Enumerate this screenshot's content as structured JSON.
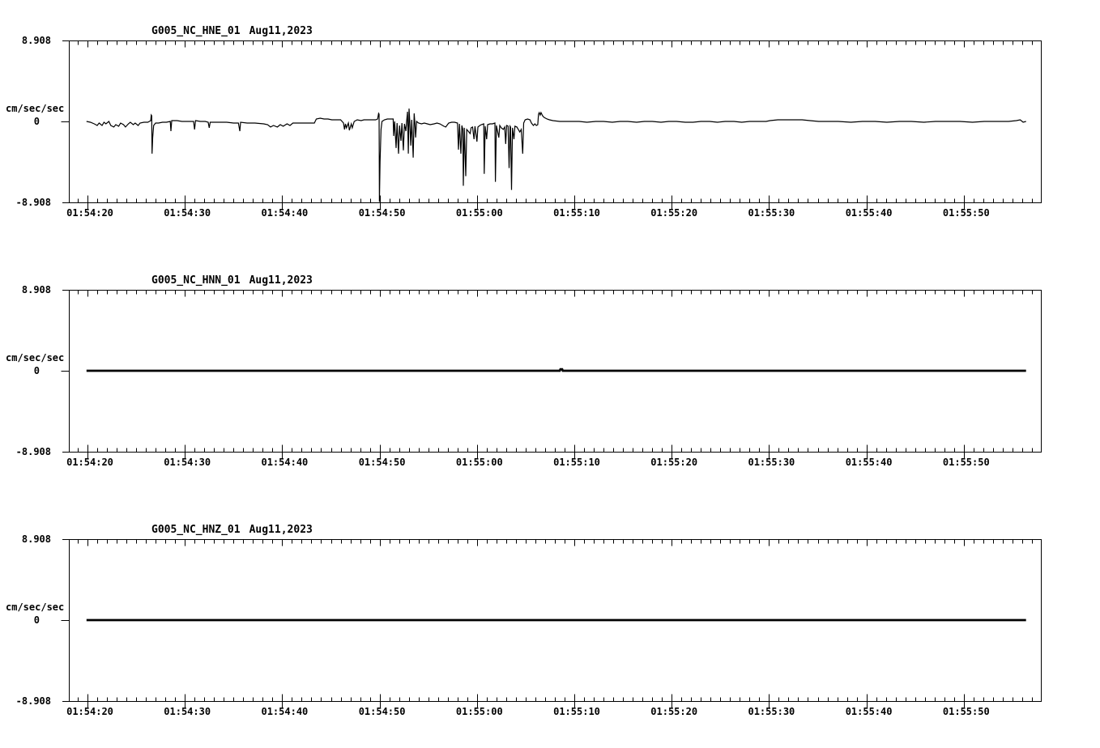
{
  "accent_color": "#000000",
  "background_color": "#ffffff",
  "chart_data": {
    "type": "line",
    "layout": "3 stacked seismogram panels, black trace on white, full box axes with 1s minor / 10s major ticks",
    "time_axis": {
      "tick_labels": [
        "01:54:20",
        "01:54:30",
        "01:54:40",
        "01:54:50",
        "01:55:00",
        "01:55:10",
        "01:55:20",
        "01:55:30",
        "01:55:40",
        "01:55:50"
      ],
      "tick_seconds": [
        20,
        30,
        40,
        50,
        60,
        70,
        80,
        90,
        100,
        110
      ],
      "range_seconds": [
        17.9,
        117.9
      ],
      "minor_tick_interval_seconds": 1
    },
    "panels": [
      {
        "title_channel": "G005_NC_HNE_01",
        "title_date": "Aug11,2023",
        "ylabel": "cm/sec/sec",
        "y_max_label": "8.908",
        "y_zero_label": "0",
        "y_min_label": "-8.908",
        "ylim": [
          -8.908,
          8.908
        ],
        "line_width": 1.2,
        "series": [
          [
            19.9,
            0
          ],
          [
            20.3,
            -0.09
          ],
          [
            20.7,
            -0.27
          ],
          [
            21.0,
            -0.45
          ],
          [
            21.2,
            -0.18
          ],
          [
            21.5,
            -0.45
          ],
          [
            21.7,
            -0.09
          ],
          [
            21.9,
            -0.27
          ],
          [
            22.2,
            0
          ],
          [
            22.4,
            -0.45
          ],
          [
            22.7,
            -0.62
          ],
          [
            22.9,
            -0.36
          ],
          [
            23.2,
            -0.53
          ],
          [
            23.4,
            -0.18
          ],
          [
            23.7,
            -0.36
          ],
          [
            23.9,
            -0.62
          ],
          [
            24.2,
            -0.27
          ],
          [
            24.4,
            -0.09
          ],
          [
            24.7,
            -0.36
          ],
          [
            24.9,
            -0.18
          ],
          [
            25.2,
            -0.45
          ],
          [
            25.4,
            -0.18
          ],
          [
            25.8,
            -0.09
          ],
          [
            26.2,
            -0.09
          ],
          [
            26.5,
            0.09
          ],
          [
            26.55,
            0.71
          ],
          [
            26.6,
            0.62
          ],
          [
            26.63,
            -3.56
          ],
          [
            26.7,
            -1.78
          ],
          [
            26.8,
            -0.45
          ],
          [
            27.0,
            -0.18
          ],
          [
            27.3,
            -0.18
          ],
          [
            27.7,
            -0.09
          ],
          [
            28.1,
            -0.09
          ],
          [
            28.5,
            0
          ],
          [
            28.57,
            -1.07
          ],
          [
            28.65,
            0.09
          ],
          [
            29.2,
            0.09
          ],
          [
            29.7,
            0
          ],
          [
            30.2,
            0
          ],
          [
            30.9,
            0
          ],
          [
            31.0,
            -0.89
          ],
          [
            31.1,
            0.09
          ],
          [
            31.6,
            0
          ],
          [
            32.1,
            0
          ],
          [
            32.4,
            -0.09
          ],
          [
            32.5,
            -0.71
          ],
          [
            32.6,
            -0.09
          ],
          [
            33.1,
            -0.09
          ],
          [
            33.6,
            -0.09
          ],
          [
            34.3,
            -0.09
          ],
          [
            35.0,
            -0.18
          ],
          [
            35.5,
            -0.18
          ],
          [
            35.65,
            -1.07
          ],
          [
            35.72,
            -0.09
          ],
          [
            36.4,
            -0.18
          ],
          [
            37.2,
            -0.18
          ],
          [
            38.1,
            -0.27
          ],
          [
            38.5,
            -0.36
          ],
          [
            38.8,
            -0.62
          ],
          [
            39.1,
            -0.45
          ],
          [
            39.5,
            -0.62
          ],
          [
            39.8,
            -0.36
          ],
          [
            40.1,
            -0.53
          ],
          [
            40.5,
            -0.27
          ],
          [
            40.8,
            -0.45
          ],
          [
            41.1,
            -0.18
          ],
          [
            41.6,
            -0.18
          ],
          [
            42.2,
            -0.18
          ],
          [
            42.8,
            -0.18
          ],
          [
            43.3,
            -0.18
          ],
          [
            43.5,
            0.27
          ],
          [
            43.9,
            0.36
          ],
          [
            44.3,
            0.27
          ],
          [
            44.7,
            0.27
          ],
          [
            45.1,
            0.18
          ],
          [
            45.6,
            0.18
          ],
          [
            46.0,
            0.18
          ],
          [
            46.3,
            -0.18
          ],
          [
            46.4,
            -0.89
          ],
          [
            46.5,
            -0.27
          ],
          [
            46.6,
            -0.71
          ],
          [
            46.8,
            -0.18
          ],
          [
            46.9,
            -0.98
          ],
          [
            47.1,
            -0.27
          ],
          [
            47.2,
            -0.71
          ],
          [
            47.4,
            0
          ],
          [
            47.7,
            0.18
          ],
          [
            48.1,
            0.09
          ],
          [
            48.4,
            0.18
          ],
          [
            48.8,
            0.18
          ],
          [
            49.2,
            0.18
          ],
          [
            49.6,
            0.18
          ],
          [
            49.8,
            0.27
          ],
          [
            49.9,
            0.89
          ],
          [
            49.95,
            0.8
          ],
          [
            49.98,
            -8.9
          ],
          [
            50.05,
            -4.45
          ],
          [
            50.15,
            -0.89
          ],
          [
            50.25,
            0
          ],
          [
            50.5,
            0.18
          ],
          [
            50.8,
            0.27
          ],
          [
            51.1,
            0.27
          ],
          [
            51.4,
            0.27
          ],
          [
            51.45,
            -1.6
          ],
          [
            51.55,
            0
          ],
          [
            51.7,
            -2.94
          ],
          [
            51.8,
            -0.18
          ],
          [
            51.95,
            -3.56
          ],
          [
            52.05,
            -0.45
          ],
          [
            52.2,
            -2.14
          ],
          [
            52.3,
            -0.18
          ],
          [
            52.45,
            -3.2
          ],
          [
            52.55,
            -0.27
          ],
          [
            52.7,
            -1.07
          ],
          [
            52.78,
            0
          ],
          [
            52.87,
            1.07
          ],
          [
            52.95,
            -3.56
          ],
          [
            53.03,
            1.42
          ],
          [
            53.1,
            0
          ],
          [
            53.2,
            -2.67
          ],
          [
            53.3,
            0.18
          ],
          [
            53.45,
            -4.0
          ],
          [
            53.55,
            0.89
          ],
          [
            53.63,
            -0.18
          ],
          [
            53.7,
            -1.78
          ],
          [
            53.8,
            0
          ],
          [
            54.0,
            -0.18
          ],
          [
            54.3,
            -0.27
          ],
          [
            54.6,
            -0.18
          ],
          [
            54.9,
            -0.27
          ],
          [
            55.2,
            -0.36
          ],
          [
            55.6,
            -0.27
          ],
          [
            55.9,
            -0.18
          ],
          [
            56.2,
            -0.27
          ],
          [
            56.6,
            -0.53
          ],
          [
            56.8,
            -0.62
          ],
          [
            57.1,
            -0.18
          ],
          [
            57.4,
            -0.09
          ],
          [
            57.7,
            -0.09
          ],
          [
            58.0,
            -0.18
          ],
          [
            58.1,
            -3.12
          ],
          [
            58.2,
            -0.27
          ],
          [
            58.35,
            -3.56
          ],
          [
            58.45,
            -0.45
          ],
          [
            58.55,
            -0.89
          ],
          [
            58.6,
            -7.12
          ],
          [
            58.7,
            -0.71
          ],
          [
            58.85,
            -6.05
          ],
          [
            58.95,
            -0.89
          ],
          [
            59.1,
            -1.07
          ],
          [
            59.3,
            -1.34
          ],
          [
            59.4,
            -0.71
          ],
          [
            59.55,
            -0.62
          ],
          [
            59.7,
            -1.96
          ],
          [
            59.8,
            -0.53
          ],
          [
            60.0,
            -2.23
          ],
          [
            60.1,
            -0.62
          ],
          [
            60.3,
            -0.45
          ],
          [
            60.45,
            -0.36
          ],
          [
            60.7,
            -0.27
          ],
          [
            60.75,
            -5.79
          ],
          [
            60.85,
            -0.53
          ],
          [
            61.0,
            -1.96
          ],
          [
            61.1,
            -0.36
          ],
          [
            61.35,
            -0.27
          ],
          [
            61.6,
            -0.27
          ],
          [
            61.85,
            -0.18
          ],
          [
            61.9,
            -6.68
          ],
          [
            62.0,
            -0.45
          ],
          [
            62.25,
            -1.78
          ],
          [
            62.35,
            -0.45
          ],
          [
            62.5,
            -0.71
          ],
          [
            62.7,
            -0.89
          ],
          [
            62.85,
            -0.62
          ],
          [
            62.95,
            -2.49
          ],
          [
            63.05,
            -0.45
          ],
          [
            63.2,
            -0.53
          ],
          [
            63.3,
            -5.16
          ],
          [
            63.4,
            -0.53
          ],
          [
            63.45,
            -0.62
          ],
          [
            63.55,
            -7.57
          ],
          [
            63.65,
            -0.71
          ],
          [
            63.8,
            -1.96
          ],
          [
            63.9,
            -0.53
          ],
          [
            64.1,
            -0.62
          ],
          [
            64.25,
            -0.89
          ],
          [
            64.4,
            -1.16
          ],
          [
            64.55,
            -0.89
          ],
          [
            64.7,
            -3.56
          ],
          [
            64.8,
            -0.18
          ],
          [
            64.95,
            0.18
          ],
          [
            65.2,
            0.27
          ],
          [
            65.45,
            0.18
          ],
          [
            65.6,
            -0.18
          ],
          [
            65.8,
            -0.45
          ],
          [
            65.95,
            -0.27
          ],
          [
            66.1,
            -0.45
          ],
          [
            66.25,
            -0.36
          ],
          [
            66.32,
            0.8
          ],
          [
            66.4,
            0.98
          ],
          [
            66.5,
            0.71
          ],
          [
            66.58,
            0.98
          ],
          [
            66.75,
            0.62
          ],
          [
            66.9,
            0.45
          ],
          [
            67.2,
            0.27
          ],
          [
            67.45,
            0.18
          ],
          [
            67.8,
            0.09
          ],
          [
            68.5,
            0
          ],
          [
            69.5,
            0
          ],
          [
            70.5,
            0
          ],
          [
            71.3,
            -0.09
          ],
          [
            72.2,
            0
          ],
          [
            73.0,
            0
          ],
          [
            73.9,
            -0.09
          ],
          [
            74.7,
            0
          ],
          [
            75.5,
            0
          ],
          [
            76.4,
            -0.09
          ],
          [
            77.2,
            0
          ],
          [
            78.0,
            0
          ],
          [
            78.9,
            -0.09
          ],
          [
            79.7,
            0
          ],
          [
            80.5,
            0
          ],
          [
            81.4,
            -0.09
          ],
          [
            82.2,
            -0.09
          ],
          [
            83.0,
            0
          ],
          [
            83.9,
            0
          ],
          [
            84.7,
            -0.09
          ],
          [
            85.5,
            0
          ],
          [
            86.4,
            0
          ],
          [
            87.2,
            -0.09
          ],
          [
            88.0,
            0
          ],
          [
            88.8,
            0
          ],
          [
            89.7,
            0
          ],
          [
            90.1,
            0.09
          ],
          [
            90.9,
            0.18
          ],
          [
            91.7,
            0.18
          ],
          [
            92.6,
            0.18
          ],
          [
            93.4,
            0.18
          ],
          [
            94.2,
            0.09
          ],
          [
            95.1,
            0
          ],
          [
            95.9,
            0
          ],
          [
            97.1,
            0
          ],
          [
            98.4,
            -0.09
          ],
          [
            99.6,
            0
          ],
          [
            100.9,
            0
          ],
          [
            102.1,
            -0.09
          ],
          [
            103.4,
            0
          ],
          [
            104.6,
            0
          ],
          [
            105.9,
            -0.09
          ],
          [
            107.1,
            0
          ],
          [
            108.4,
            0
          ],
          [
            109.6,
            0
          ],
          [
            110.9,
            -0.09
          ],
          [
            112.1,
            0
          ],
          [
            113.4,
            0
          ],
          [
            114.6,
            0
          ],
          [
            115.4,
            0.09
          ],
          [
            115.8,
            0.18
          ],
          [
            116.1,
            -0.09
          ],
          [
            116.4,
            0
          ]
        ]
      },
      {
        "title_channel": "G005_NC_HNN_01",
        "title_date": "Aug11,2023",
        "ylabel": "cm/sec/sec",
        "y_max_label": "8.908",
        "y_zero_label": "0",
        "y_min_label": "-8.908",
        "ylim": [
          -8.908,
          8.908
        ],
        "line_width": 2.8,
        "series": [
          [
            19.9,
            0
          ],
          [
            68.5,
            0
          ],
          [
            68.58,
            0.16
          ],
          [
            68.75,
            0.16
          ],
          [
            68.82,
            0
          ],
          [
            116.4,
            0
          ]
        ]
      },
      {
        "title_channel": "G005_NC_HNZ_01",
        "title_date": "Aug11,2023",
        "ylabel": "cm/sec/sec",
        "y_max_label": "8.908",
        "y_zero_label": "0",
        "y_min_label": "-8.908",
        "ylim": [
          -8.908,
          8.908
        ],
        "line_width": 2.8,
        "series": [
          [
            19.9,
            0
          ],
          [
            116.4,
            0
          ]
        ]
      }
    ]
  }
}
